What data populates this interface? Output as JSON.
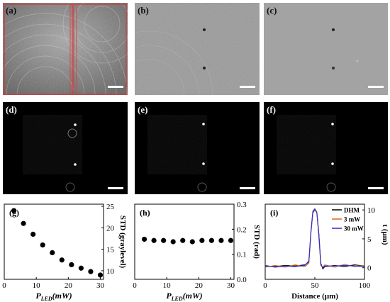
{
  "panels": {
    "a": {
      "label": "(a)"
    },
    "b": {
      "label": "(b)"
    },
    "c": {
      "label": "(c)"
    },
    "d": {
      "label": "(d)"
    },
    "e": {
      "label": "(e)"
    },
    "f": {
      "label": "(f)"
    }
  },
  "colors": {
    "roi": "#d23a3a",
    "marker": "#000000",
    "dhm": "#000000",
    "mw3": "#d2691e",
    "mw30": "#2b2bd6"
  },
  "chart_data": [
    {
      "panel": "(g)",
      "type": "scatter",
      "xlabel": "P_LED(mW)",
      "xlabel_main": "P",
      "xlabel_sub": "LED",
      "xlabel_unit": "(mW)",
      "ylabel": "STD (graylevel)",
      "x_ticks": [
        "0",
        "10",
        "20",
        "30"
      ],
      "y_ticks": [
        "10",
        "15",
        "20",
        "25"
      ],
      "xlim": [
        0,
        31
      ],
      "ylim": [
        8,
        25.5
      ],
      "x": [
        3,
        6,
        9,
        12,
        15,
        18,
        21,
        24,
        27,
        30
      ],
      "y": [
        24,
        21,
        18.5,
        16,
        14.2,
        12.5,
        11.4,
        10.6,
        9.8,
        9.0
      ]
    },
    {
      "panel": "(h)",
      "type": "scatter",
      "xlabel": "P_LED(mW)",
      "xlabel_main": "P",
      "xlabel_sub": "LED",
      "xlabel_unit": "(mW)",
      "ylabel": "STD (rad)",
      "x_ticks": [
        "0",
        "10",
        "20",
        "30"
      ],
      "y_ticks": [
        "0.0",
        "0.1",
        "0.2",
        "0.3"
      ],
      "xlim": [
        0,
        31
      ],
      "ylim": [
        0,
        0.3
      ],
      "x": [
        3,
        6,
        9,
        12,
        15,
        18,
        21,
        24,
        27,
        30
      ],
      "y": [
        0.16,
        0.155,
        0.155,
        0.15,
        0.155,
        0.15,
        0.155,
        0.155,
        0.155,
        0.155
      ]
    },
    {
      "panel": "(i)",
      "type": "line",
      "xlabel": "Distance (μm)",
      "ylabel": "t (μm)",
      "x_ticks": [
        "0",
        "50",
        "100"
      ],
      "y_ticks": [
        "0",
        "5",
        "10"
      ],
      "xlim": [
        0,
        100
      ],
      "ylim": [
        -2,
        11
      ],
      "legend": [
        "DHM",
        "3 mW",
        "30 mW"
      ],
      "legend_position": "top-right",
      "series": [
        {
          "name": "DHM",
          "x": [
            0,
            10,
            20,
            30,
            40,
            44,
            46,
            48,
            50,
            52,
            54,
            56,
            58,
            60,
            70,
            80,
            90,
            100
          ],
          "y": [
            0.3,
            0.2,
            0.4,
            0.3,
            0.5,
            1.0,
            6.0,
            9.5,
            10.0,
            9.6,
            6.0,
            0.8,
            -0.2,
            0.2,
            0.4,
            0.2,
            0.5,
            0.3
          ]
        },
        {
          "name": "3 mW",
          "x": [
            0,
            10,
            20,
            30,
            40,
            44,
            46,
            48,
            50,
            52,
            54,
            56,
            58,
            60,
            70,
            80,
            90,
            100
          ],
          "y": [
            0.1,
            0.4,
            0.1,
            0.5,
            0.2,
            0.8,
            5.8,
            9.6,
            10.1,
            9.7,
            5.5,
            0.4,
            0.1,
            0.5,
            0.1,
            0.6,
            0.2,
            0.4
          ]
        },
        {
          "name": "30 mW",
          "x": [
            0,
            10,
            20,
            30,
            40,
            44,
            46,
            48,
            50,
            52,
            54,
            56,
            58,
            60,
            70,
            80,
            90,
            100
          ],
          "y": [
            0.4,
            0.1,
            0.3,
            0.2,
            0.4,
            1.2,
            6.2,
            9.8,
            10.2,
            9.5,
            5.8,
            0.6,
            0.0,
            0.3,
            0.3,
            0.4,
            0.3,
            0.2
          ]
        }
      ]
    }
  ]
}
